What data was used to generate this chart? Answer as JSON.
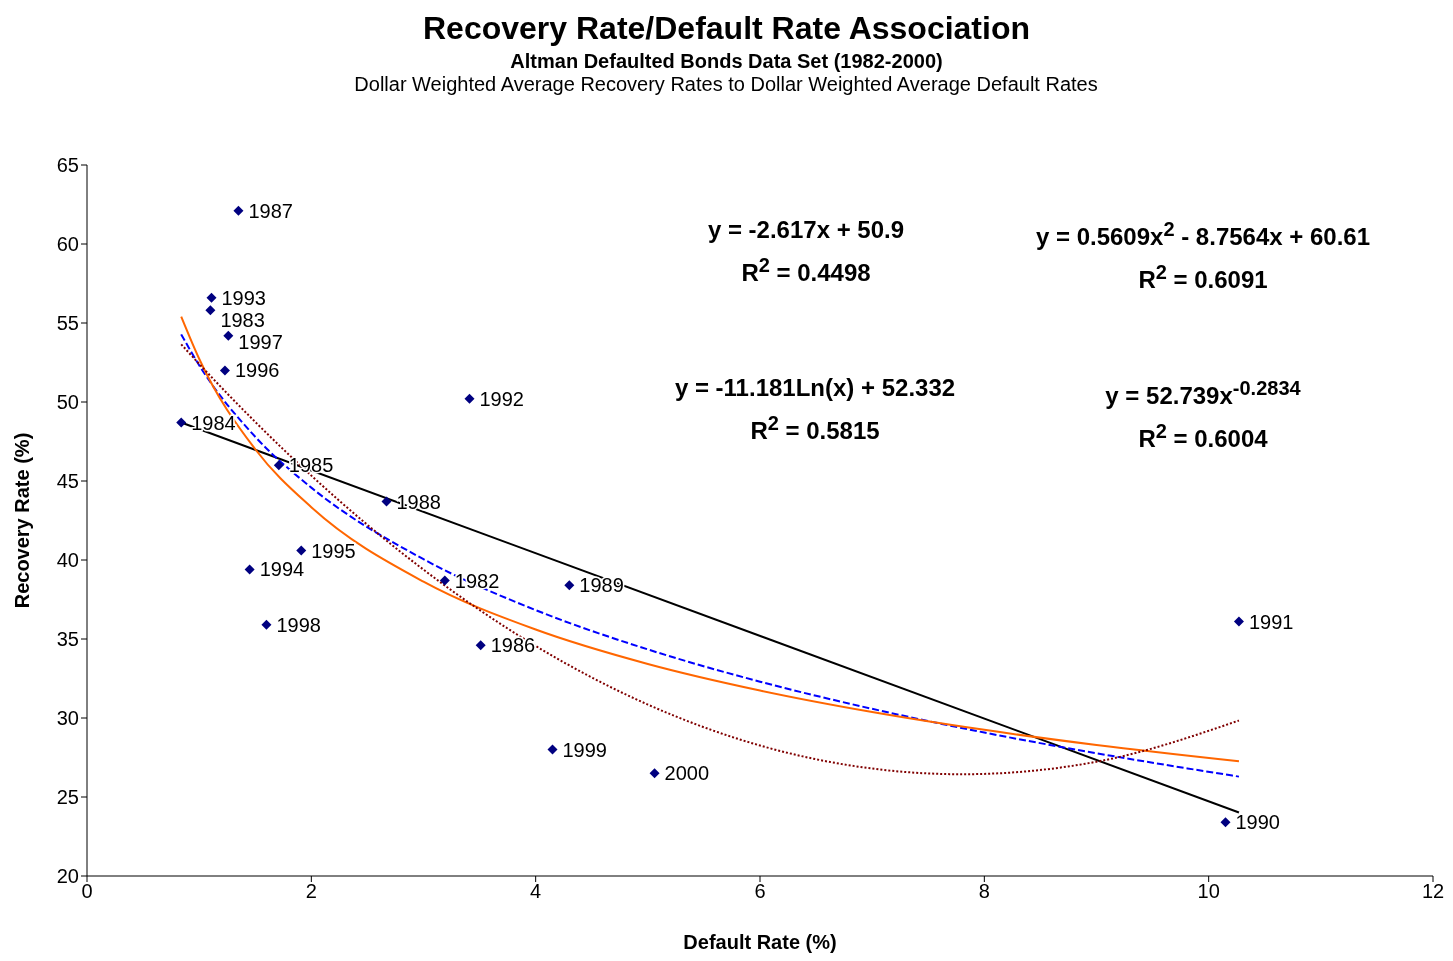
{
  "chart_data": {
    "type": "scatter",
    "title": "Recovery Rate/Default Rate Association",
    "subtitle": "Altman Defaulted Bonds Data Set (1982-2000)",
    "xlabel": "Default Rate (%)",
    "ylabel": "Recovery Rate (%)",
    "xlim": [
      0,
      12
    ],
    "xticks": [
      0,
      2,
      4,
      6,
      8,
      10,
      12
    ],
    "ylim": [
      20,
      65
    ],
    "yticks": [
      20,
      25,
      30,
      35,
      40,
      45,
      50,
      55,
      60,
      65
    ],
    "grid": false,
    "series": [
      {
        "marker": "diamond",
        "color": "#000080",
        "x": [
          1.35,
          1.11,
          1.1,
          1.26,
          1.23,
          0.84,
          3.41,
          1.71,
          2.67,
          1.91,
          1.45,
          3.19,
          4.3,
          1.6,
          3.51,
          10.27,
          4.15,
          5.06,
          10.15
        ],
        "values": [
          62.1,
          56.6,
          55.8,
          54.2,
          52.0,
          48.7,
          50.2,
          46.0,
          43.7,
          40.6,
          39.4,
          38.7,
          38.4,
          35.9,
          34.6,
          36.1,
          28.0,
          26.5,
          23.4
        ]
      },
      {
        "type": "line",
        "color": "#000000",
        "line_style": "solid",
        "x": [
          0.84,
          10.27
        ],
        "values": [
          48.7,
          24.02
        ]
      },
      {
        "type": "line",
        "color": "#0000ff",
        "line_style": "dashed",
        "x": [
          0.84,
          1,
          1.5,
          2,
          3,
          4,
          5,
          6,
          7,
          8,
          9,
          10.27
        ],
        "values": [
          54.28,
          52.33,
          47.8,
          44.58,
          40.05,
          36.83,
          34.34,
          32.3,
          30.58,
          29.08,
          27.77,
          26.29
        ]
      },
      {
        "type": "line",
        "color": "#ff6600",
        "line_style": "solid",
        "x": [
          0.84,
          1,
          1.5,
          2,
          3,
          4,
          5,
          6,
          7,
          8,
          9,
          10.27
        ],
        "values": [
          55.41,
          52.74,
          47.01,
          43.34,
          38.63,
          35.6,
          33.42,
          31.74,
          30.38,
          29.25,
          28.29,
          27.26
        ]
      },
      {
        "type": "line",
        "color": "#800000",
        "line_style": "dotted",
        "x": [
          0.84,
          1,
          1.5,
          2,
          3,
          4,
          5,
          6,
          7,
          7.8,
          9,
          10.27
        ],
        "values": [
          53.65,
          52.41,
          48.74,
          45.34,
          39.39,
          34.56,
          30.85,
          28.26,
          26.8,
          26.44,
          27.23,
          29.84
        ]
      }
    ],
    "annotations": [
      "Dollar Weighted Average Recovery Rates to Dollar Weighted Average Default Rates",
      "y = -2.617x + 50.9\nR$^{2}$ = 0.4498",
      "y = 0.5609x$^{2}$ - 8.7564x + 60.61\nR$^{2}$ = 0.6091",
      "y = -11.181Ln(x) + 52.332\nR$^{2}$ = 0.5815",
      "y = 52.739x$^{-0.2834}$\nR$^{2}$ = 0.6004",
      {
        "text": "1987",
        "x": 1.35,
        "y": 62.1
      },
      {
        "text": "1993",
        "x": 1.11,
        "y": 56.6
      },
      {
        "text": "1983",
        "x": 1.1,
        "y": 55.8
      },
      {
        "text": "1997",
        "x": 1.26,
        "y": 54.2
      },
      {
        "text": "1996",
        "x": 1.23,
        "y": 52.0
      },
      {
        "text": "1984",
        "x": 0.84,
        "y": 48.7
      },
      {
        "text": "1992",
        "x": 3.41,
        "y": 50.2
      },
      {
        "text": "1985",
        "x": 1.71,
        "y": 46.0
      },
      {
        "text": "1988",
        "x": 2.67,
        "y": 43.7
      },
      {
        "text": "1995",
        "x": 1.91,
        "y": 40.6
      },
      {
        "text": "1994",
        "x": 1.45,
        "y": 39.4
      },
      {
        "text": "1982",
        "x": 3.19,
        "y": 38.7
      },
      {
        "text": "1989",
        "x": 4.3,
        "y": 38.4
      },
      {
        "text": "1998",
        "x": 1.6,
        "y": 35.9
      },
      {
        "text": "1986",
        "x": 3.51,
        "y": 34.6
      },
      {
        "text": "1991",
        "x": 10.27,
        "y": 36.1
      },
      {
        "text": "1999",
        "x": 4.15,
        "y": 28.0
      },
      {
        "text": "2000",
        "x": 5.06,
        "y": 26.5
      },
      {
        "text": "1990",
        "x": 10.15,
        "y": 23.4
      }
    ]
  }
}
